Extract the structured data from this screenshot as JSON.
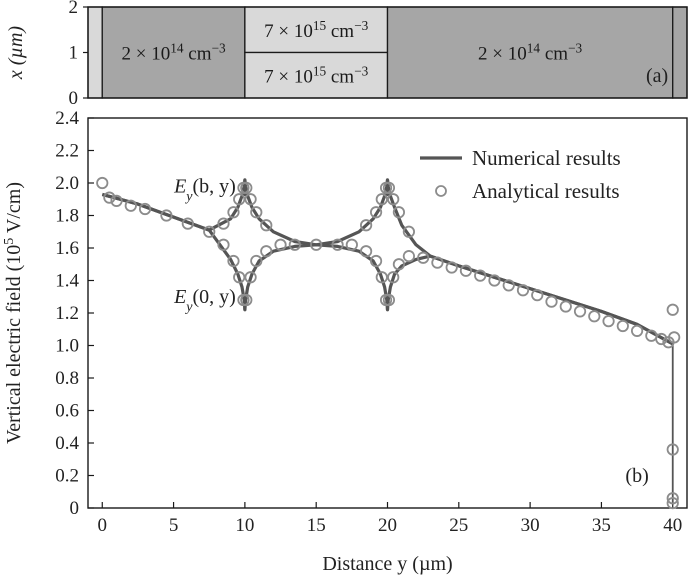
{
  "chart_data": [
    {
      "panel": "(a)",
      "type": "diagram",
      "ylabel": "x (µm)",
      "y_ticks": [
        "0",
        "1",
        "2"
      ],
      "regions": [
        {
          "y_start": -1,
          "y_end": 0,
          "x_start": 0,
          "x_end": 2,
          "label": "",
          "fill": "#d9d9d9"
        },
        {
          "y_start": 0,
          "y_end": 10,
          "x_start": 0,
          "x_end": 2,
          "label": "2 × 10¹⁴ cm⁻³",
          "fill": "#a6a6a6"
        },
        {
          "y_start": 10,
          "y_end": 20,
          "x_start": 1,
          "x_end": 2,
          "label": "7 × 10¹⁵ cm⁻³",
          "fill": "#d9d9d9"
        },
        {
          "y_start": 10,
          "y_end": 20,
          "x_start": 0,
          "x_end": 1,
          "label": "7 × 10¹⁵ cm⁻³",
          "fill": "#d9d9d9"
        },
        {
          "y_start": 20,
          "y_end": 40,
          "x_start": 0,
          "x_end": 2,
          "label": "2 × 10¹⁴ cm⁻³",
          "fill": "#a6a6a6"
        },
        {
          "y_start": 40,
          "y_end": 41,
          "x_start": 0,
          "x_end": 2,
          "label": "",
          "fill": "#a6a6a6"
        }
      ]
    },
    {
      "panel": "(b)",
      "type": "line",
      "xlabel": "Distance y (µm)",
      "ylabel": "Vertical electric field (10⁵ V/cm)",
      "xlim": [
        -1,
        41
      ],
      "ylim": [
        0,
        2.4
      ],
      "x_ticks": [
        0,
        5,
        10,
        15,
        20,
        25,
        30,
        35,
        40
      ],
      "y_ticks": [
        0,
        0.2,
        0.4,
        0.6,
        0.8,
        1.0,
        1.2,
        1.4,
        1.6,
        1.8,
        2.0,
        2.2,
        2.4
      ],
      "y_tick_labels": [
        "0",
        "0.2",
        "0.4",
        "0.6",
        "0.8",
        "1.0",
        "1.2",
        "1.4",
        "1.6",
        "1.8",
        "2.0",
        "2.2",
        "2.4"
      ],
      "legend": {
        "placement": "top-right",
        "entries": [
          "Numerical results",
          "Analytical results"
        ]
      },
      "annotations": [
        {
          "text": "Ey(b, y)",
          "x": 7.2,
          "y": 1.98
        },
        {
          "text": "Ey(0, y)",
          "x": 7.2,
          "y": 1.3
        }
      ],
      "series": [
        {
          "name": "Numerical results",
          "style": "line",
          "color": "#555555",
          "x": [
            0,
            2.5,
            5,
            7.5,
            9,
            9.5,
            9.8,
            9.95,
            10,
            10.05,
            10.2,
            10.5,
            11,
            12,
            13.5,
            15,
            16.5,
            18,
            19,
            19.5,
            19.8,
            19.95,
            20,
            20.05,
            20.2,
            20.5,
            21,
            22,
            23,
            25,
            27.5,
            30,
            32.5,
            35,
            37.5,
            40
          ],
          "y_upper": [
            1.93,
            1.87,
            1.79,
            1.71,
            1.78,
            1.85,
            1.92,
            1.98,
            2.02,
            1.98,
            1.92,
            1.85,
            1.78,
            1.7,
            1.64,
            1.62,
            1.64,
            1.7,
            1.78,
            1.85,
            1.92,
            1.98,
            2.02,
            1.98,
            1.92,
            1.85,
            1.74,
            1.62,
            1.55,
            1.49,
            1.42,
            1.35,
            1.28,
            1.21,
            1.13,
            1.01
          ],
          "y_lower": [
            1.93,
            1.87,
            1.79,
            1.71,
            1.53,
            1.44,
            1.36,
            1.28,
            1.22,
            1.28,
            1.36,
            1.44,
            1.52,
            1.58,
            1.61,
            1.62,
            1.61,
            1.58,
            1.52,
            1.44,
            1.36,
            1.28,
            1.22,
            1.28,
            1.36,
            1.44,
            1.49,
            1.53,
            1.55,
            1.49,
            1.42,
            1.35,
            1.28,
            1.21,
            1.13,
            1.01
          ]
        },
        {
          "name": "Analytical results",
          "style": "marker",
          "marker": "circle",
          "color": "#8c8c8c",
          "points": [
            [
              0,
              2.0
            ],
            [
              0.5,
              1.91
            ],
            [
              1,
              1.89
            ],
            [
              2,
              1.86
            ],
            [
              3,
              1.84
            ],
            [
              4.5,
              1.8
            ],
            [
              6,
              1.75
            ],
            [
              7.5,
              1.7
            ],
            [
              8.5,
              1.75
            ],
            [
              9.2,
              1.82
            ],
            [
              9.6,
              1.9
            ],
            [
              9.9,
              1.97
            ],
            [
              10.1,
              1.97
            ],
            [
              10.4,
              1.9
            ],
            [
              10.8,
              1.82
            ],
            [
              11.5,
              1.74
            ],
            [
              8.5,
              1.62
            ],
            [
              9.2,
              1.52
            ],
            [
              9.6,
              1.42
            ],
            [
              9.9,
              1.28
            ],
            [
              10.1,
              1.28
            ],
            [
              10.4,
              1.42
            ],
            [
              10.8,
              1.52
            ],
            [
              11.5,
              1.58
            ],
            [
              12.5,
              1.62
            ],
            [
              13.5,
              1.62
            ],
            [
              15,
              1.62
            ],
            [
              16.5,
              1.62
            ],
            [
              17.5,
              1.62
            ],
            [
              18.5,
              1.74
            ],
            [
              19.2,
              1.82
            ],
            [
              19.6,
              1.9
            ],
            [
              19.9,
              1.97
            ],
            [
              20.1,
              1.97
            ],
            [
              20.4,
              1.9
            ],
            [
              20.8,
              1.82
            ],
            [
              21.5,
              1.7
            ],
            [
              18.5,
              1.58
            ],
            [
              19.2,
              1.52
            ],
            [
              19.6,
              1.42
            ],
            [
              19.9,
              1.28
            ],
            [
              20.1,
              1.28
            ],
            [
              20.4,
              1.42
            ],
            [
              20.8,
              1.5
            ],
            [
              21.5,
              1.55
            ],
            [
              22.5,
              1.54
            ],
            [
              23.5,
              1.51
            ],
            [
              24.5,
              1.48
            ],
            [
              25.5,
              1.46
            ],
            [
              26.5,
              1.43
            ],
            [
              27.5,
              1.4
            ],
            [
              28.5,
              1.37
            ],
            [
              29.5,
              1.34
            ],
            [
              30.5,
              1.31
            ],
            [
              31.5,
              1.27
            ],
            [
              32.5,
              1.24
            ],
            [
              33.5,
              1.21
            ],
            [
              34.5,
              1.18
            ],
            [
              35.5,
              1.15
            ],
            [
              36.5,
              1.12
            ],
            [
              37.5,
              1.09
            ],
            [
              38.5,
              1.06
            ],
            [
              39.2,
              1.04
            ],
            [
              39.7,
              1.02
            ],
            [
              40,
              1.22
            ],
            [
              40.1,
              1.05
            ],
            [
              40,
              0.36
            ],
            [
              40,
              0.06
            ],
            [
              40,
              0.03
            ]
          ]
        }
      ]
    }
  ]
}
